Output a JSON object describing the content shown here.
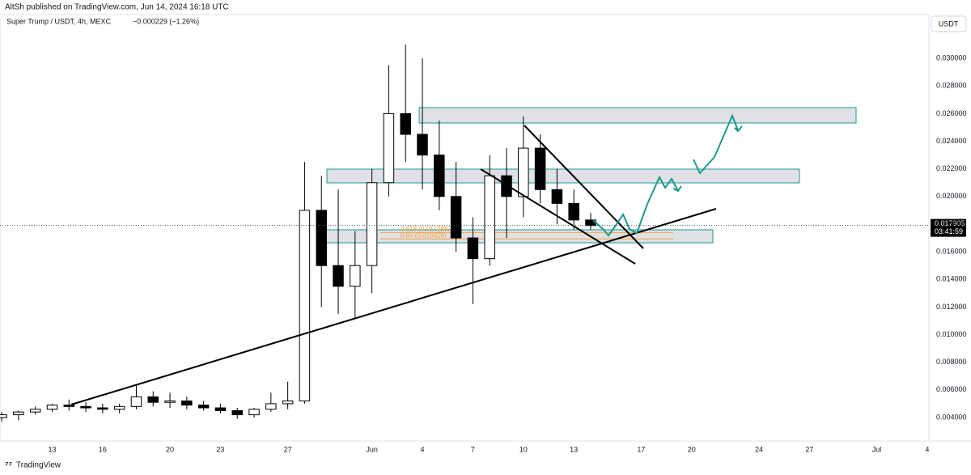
{
  "header": {
    "publisher": "AltSh published on TradingView.com, Jun 14, 2024 16:18 UTC",
    "logo": "TradingView"
  },
  "chart_data": {
    "type": "candlestick",
    "symbol": "Super Trump / USDT, 4h, MEXC",
    "change": "−0.000229 (−1.26%)",
    "currency": "USDT",
    "x": [
      -3,
      -2,
      -1,
      0,
      1,
      2,
      3,
      4,
      5,
      6,
      7,
      8,
      9,
      10,
      11,
      12,
      13,
      14,
      15,
      16,
      17,
      18,
      19,
      20,
      21,
      22,
      23,
      24,
      25,
      26,
      27,
      28,
      29,
      30,
      31,
      32
    ],
    "open": [
      0.004,
      0.0042,
      0.0044,
      0.0046,
      0.0049,
      0.0048,
      0.0047,
      0.0046,
      0.0048,
      0.0055,
      0.0051,
      0.0052,
      0.0049,
      0.0047,
      0.0045,
      0.0042,
      0.0046,
      0.005,
      0.0052,
      0.019,
      0.015,
      0.0135,
      0.015,
      0.021,
      0.026,
      0.0245,
      0.023,
      0.02,
      0.017,
      0.0155,
      0.0215,
      0.02,
      0.0235,
      0.0205,
      0.0195,
      0.0183
    ],
    "high": [
      0.0044,
      0.0045,
      0.0048,
      0.005,
      0.0053,
      0.0051,
      0.005,
      0.005,
      0.0064,
      0.0059,
      0.0058,
      0.0055,
      0.0052,
      0.005,
      0.0047,
      0.0047,
      0.0058,
      0.0066,
      0.0225,
      0.0215,
      0.0205,
      0.0175,
      0.022,
      0.0295,
      0.031,
      0.03,
      0.0255,
      0.0225,
      0.0185,
      0.023,
      0.0235,
      0.0258,
      0.0245,
      0.022,
      0.0205,
      0.0188
    ],
    "low": [
      0.0037,
      0.0038,
      0.0042,
      0.0044,
      0.0045,
      0.0044,
      0.0043,
      0.0043,
      0.0046,
      0.0048,
      0.0047,
      0.0046,
      0.0045,
      0.0043,
      0.0039,
      0.004,
      0.0044,
      0.0046,
      0.005,
      0.012,
      0.0115,
      0.0112,
      0.013,
      0.02,
      0.0225,
      0.0205,
      0.019,
      0.016,
      0.0122,
      0.015,
      0.017,
      0.0185,
      0.0195,
      0.018,
      0.0176,
      0.0176
    ],
    "close": [
      0.0042,
      0.0044,
      0.0046,
      0.0049,
      0.0048,
      0.0047,
      0.0046,
      0.0048,
      0.0055,
      0.0051,
      0.0052,
      0.0049,
      0.0047,
      0.0045,
      0.0042,
      0.0046,
      0.005,
      0.0052,
      0.019,
      0.015,
      0.0135,
      0.015,
      0.021,
      0.026,
      0.0245,
      0.023,
      0.02,
      0.017,
      0.0155,
      0.0215,
      0.02,
      0.0235,
      0.0205,
      0.0195,
      0.0183,
      0.0179
    ],
    "up_color": "#ffffff",
    "down_color": "#000000",
    "xlim": [
      -3.1,
      52.1
    ],
    "xticks": [
      {
        "value": 0,
        "label": "13"
      },
      {
        "value": 3,
        "label": "16"
      },
      {
        "value": 7,
        "label": "20"
      },
      {
        "value": 10,
        "label": "23"
      },
      {
        "value": 14,
        "label": "27"
      },
      {
        "value": 19,
        "label": "Jun"
      },
      {
        "value": 22,
        "label": "4"
      },
      {
        "value": 25,
        "label": "7"
      },
      {
        "value": 28,
        "label": "10"
      },
      {
        "value": 31,
        "label": "13"
      },
      {
        "value": 35,
        "label": "17"
      },
      {
        "value": 38,
        "label": "20"
      },
      {
        "value": 42,
        "label": "24"
      },
      {
        "value": 45,
        "label": "27"
      },
      {
        "value": 49,
        "label": "Jul"
      },
      {
        "value": 52,
        "label": "4"
      }
    ],
    "ylim": [
      0.0023,
      0.03317
    ],
    "yticks": [
      {
        "value": 0.004,
        "label": "0.004000"
      },
      {
        "value": 0.006,
        "label": "0.006000"
      },
      {
        "value": 0.008,
        "label": "0.008000"
      },
      {
        "value": 0.01,
        "label": "0.010000"
      },
      {
        "value": 0.012,
        "label": "0.012000"
      },
      {
        "value": 0.014,
        "label": "0.014000"
      },
      {
        "value": 0.016,
        "label": "0.016000"
      },
      {
        "value": 0.018,
        "label": "0.018000"
      },
      {
        "value": 0.02,
        "label": "0.020000"
      },
      {
        "value": 0.022,
        "label": "0.022000"
      },
      {
        "value": 0.024,
        "label": "0.024000"
      },
      {
        "value": 0.026,
        "label": "0.026000"
      },
      {
        "value": 0.028,
        "label": "0.028000"
      },
      {
        "value": 0.03,
        "label": "0.030000"
      }
    ],
    "last_price": 0.017905,
    "countdown": "03:41:59",
    "fib_levels": [
      {
        "value": 0.017388,
        "label": "0.618 (0.017388)"
      },
      {
        "value": 0.016928,
        "label": "0.65 (0.016928)"
      }
    ]
  }
}
